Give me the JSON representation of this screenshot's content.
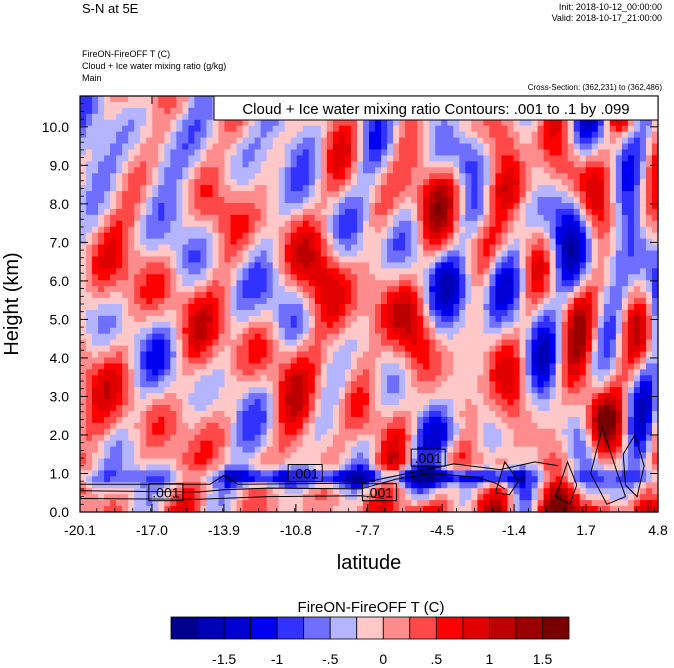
{
  "header": {
    "title": "S-N at 5E",
    "init": "Init: 2018-10-12_00:00:00",
    "valid": "Valid: 2018-10-17_21:00:00",
    "field1": "FireON-FireOFF T   (C)",
    "field2": "Cloud + Ice water mixing ratio   (g/kg)",
    "field3": "Main",
    "cross_section": "Cross-Section: (362,231) to (362,486)"
  },
  "chart_data": {
    "type": "heatmap",
    "title": "Cloud + Ice water mixing ratio Contours: .001 to .1 by .099",
    "xlabel": "latitude",
    "ylabel": "Height (km)",
    "xlim": [
      -20.1,
      4.8
    ],
    "ylim": [
      0.0,
      10.8
    ],
    "x_ticks": [
      -20.1,
      -17.0,
      -13.9,
      -10.8,
      -7.7,
      -4.5,
      -1.4,
      1.7,
      4.8
    ],
    "x_tick_labels": [
      "-20.1",
      "-17.0",
      "-13.9",
      "-10.8",
      "-7.7",
      "-4.5",
      "-1.4",
      "1.7",
      "4.8"
    ],
    "y_ticks": [
      0,
      1,
      2,
      3,
      4,
      5,
      6,
      7,
      8,
      9,
      10
    ],
    "y_tick_labels": [
      "0.0",
      "1.0",
      "2.0",
      "3.0",
      "4.0",
      "5.0",
      "6.0",
      "7.0",
      "8.0",
      "9.0",
      "10.0"
    ],
    "contour_labels": [
      {
        "text": ".001",
        "x": -16.4,
        "y": 0.5
      },
      {
        "text": ".001",
        "x": -10.4,
        "y": 1.0
      },
      {
        "text": ".001",
        "x": -7.2,
        "y": 0.5
      },
      {
        "text": ".001",
        "x": -5.1,
        "y": 1.4
      }
    ],
    "colorbar": {
      "title": "FireON-FireOFF T  (C)",
      "levels": [
        -1.75,
        -1.5,
        -1.25,
        -1.0,
        -0.75,
        -0.5,
        -0.25,
        0.0,
        0.25,
        0.5,
        0.75,
        1.0,
        1.25,
        1.5,
        1.75
      ],
      "colors": [
        "#00008c",
        "#0000b4",
        "#0000d2",
        "#0000f0",
        "#3232ff",
        "#6e6eff",
        "#b4b4ff",
        "#ffc8c8",
        "#ff8c8c",
        "#ff4848",
        "#ff0000",
        "#e00000",
        "#bc0000",
        "#9a0000",
        "#780000"
      ],
      "tick_values": [
        -1.5,
        -1.0,
        -0.5,
        0.0,
        0.5,
        1.0,
        1.5
      ],
      "tick_labels": [
        "-1.5",
        "-1",
        "-.5",
        "0",
        ".5",
        "1",
        "1.5"
      ]
    },
    "grid": false
  }
}
